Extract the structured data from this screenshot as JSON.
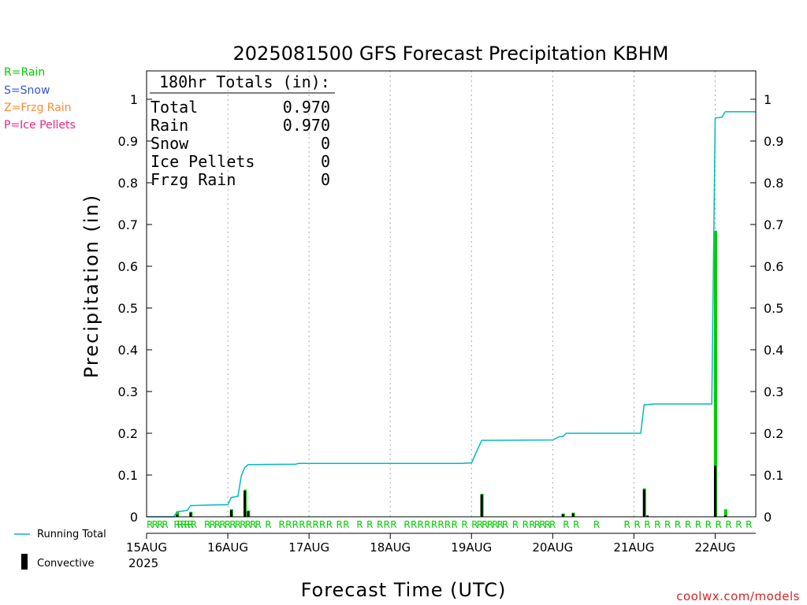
{
  "chart_data": {
    "type": "bar",
    "title": "2025081500 GFS Forecast Precipitation KBHM",
    "xlabel": "Forecast Time (UTC)",
    "ylabel": "Precipitation (in)",
    "ylim": [
      0,
      1.05
    ],
    "y_ticks": [
      0,
      0.1,
      0.2,
      0.3,
      0.4,
      0.5,
      0.6,
      0.7,
      0.8,
      0.9,
      1
    ],
    "y_tick_labels": [
      "0",
      "0.1",
      "0.2",
      "0.3",
      "0.4",
      "0.5",
      "0.6",
      "0.7",
      "0.8",
      "0.9",
      "1"
    ],
    "xlim_hours": [
      0,
      180
    ],
    "x_ticks_hours": [
      0,
      24,
      48,
      72,
      96,
      120,
      144,
      168
    ],
    "x_tick_labels": [
      "15AUG",
      "16AUG",
      "17AUG",
      "18AUG",
      "19AUG",
      "20AUG",
      "21AUG",
      "22AUG"
    ],
    "x_year_label": "2025",
    "grid": "vertical dotted at day boundaries",
    "legend_top_left": [
      {
        "label": "R=Rain",
        "color": "#00cc00"
      },
      {
        "label": "S=Snow",
        "color": "#3355dd"
      },
      {
        "label": "Z=Frzg Rain",
        "color": "#ff8833"
      },
      {
        "label": "P=Ice Pellets",
        "color": "#ee2288"
      }
    ],
    "legend_bottom_left": [
      {
        "label": "Running Total",
        "color": "#00bbbb"
      },
      {
        "label": "Convective",
        "color": "#000000"
      }
    ],
    "totals_box": {
      "header": "180hr Totals (in):",
      "rows": [
        {
          "label": "Total",
          "value": "0.970"
        },
        {
          "label": "Rain",
          "value": "0.970"
        },
        {
          "label": "Snow",
          "value": "0"
        },
        {
          "label": "Ice Pellets",
          "value": "0"
        },
        {
          "label": "Frzg Rain",
          "value": "0"
        }
      ]
    },
    "running_total": {
      "name": "Running Total",
      "color": "#00bbbb",
      "points": [
        [
          0,
          0
        ],
        [
          8,
          0
        ],
        [
          9,
          0.012
        ],
        [
          12,
          0.015
        ],
        [
          13,
          0.027
        ],
        [
          24,
          0.029
        ],
        [
          25,
          0.046
        ],
        [
          27,
          0.049
        ],
        [
          28,
          0.098
        ],
        [
          29,
          0.118
        ],
        [
          30,
          0.125
        ],
        [
          44,
          0.126
        ],
        [
          45,
          0.128
        ],
        [
          93,
          0.128
        ],
        [
          96,
          0.129
        ],
        [
          99,
          0.183
        ],
        [
          120,
          0.184
        ],
        [
          122,
          0.192
        ],
        [
          123,
          0.192
        ],
        [
          124,
          0.2
        ],
        [
          146,
          0.2
        ],
        [
          147,
          0.268
        ],
        [
          150,
          0.27
        ],
        [
          167,
          0.27
        ],
        [
          168,
          0.955
        ],
        [
          170,
          0.957
        ],
        [
          171,
          0.97
        ],
        [
          180,
          0.97
        ]
      ]
    },
    "precip_bars": {
      "name": "Rain",
      "color": "#00cc00",
      "values": [
        [
          9,
          0.012
        ],
        [
          13,
          0.012
        ],
        [
          25,
          0.018
        ],
        [
          29,
          0.065
        ],
        [
          30,
          0.015
        ],
        [
          99,
          0.055
        ],
        [
          123,
          0.008
        ],
        [
          126,
          0.01
        ],
        [
          147,
          0.068
        ],
        [
          168,
          0.685
        ],
        [
          171,
          0.018
        ]
      ]
    },
    "convective_bars": {
      "name": "Convective",
      "color": "#000000",
      "values": [
        [
          9,
          0.005
        ],
        [
          13,
          0.01
        ],
        [
          25,
          0.016
        ],
        [
          29,
          0.062
        ],
        [
          30,
          0.013
        ],
        [
          99,
          0.053
        ],
        [
          123,
          0.006
        ],
        [
          126,
          0.008
        ],
        [
          147,
          0.065
        ],
        [
          148,
          0.003
        ],
        [
          168,
          0.122
        ],
        [
          171,
          0.003
        ]
      ]
    },
    "precip_type_markers": {
      "symbol": "R",
      "color": "#00cc00",
      "hours": [
        0,
        1.5,
        3,
        4.5,
        8,
        9,
        10,
        11,
        12,
        13,
        17,
        18.5,
        20,
        21.5,
        23,
        24.5,
        26,
        27.5,
        29,
        30.5,
        32,
        35,
        39,
        41,
        43,
        45,
        47,
        49,
        51,
        53,
        56,
        58,
        62,
        65,
        68,
        70,
        72,
        76,
        78,
        80,
        82,
        84,
        86,
        88,
        90,
        93,
        96,
        97.5,
        99,
        100.5,
        102,
        103.5,
        105,
        108,
        111,
        113,
        114.5,
        116,
        117.5,
        119,
        123,
        126,
        132,
        141,
        144,
        147,
        150,
        153,
        156,
        159,
        162,
        165,
        168,
        171,
        174,
        177
      ]
    },
    "credit": "coolwx.com/models"
  }
}
